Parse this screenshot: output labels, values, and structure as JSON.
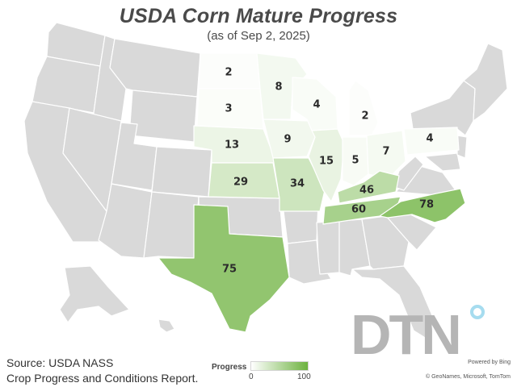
{
  "title": "USDA Corn Mature Progress",
  "subtitle": "(as of Sep 2, 2025)",
  "source_line1": "Source: USDA NASS",
  "source_line2": "Crop Progress and Conditions Report.",
  "legend": {
    "title": "Progress",
    "min": "0",
    "max": "100",
    "low_color": "#ffffff",
    "high_color": "#6db23f"
  },
  "colors": {
    "no_data": "#d9d9d9",
    "background": "#ffffff",
    "border": "#ffffff"
  },
  "logo_text": "DTN",
  "credit_powered": "Powered by Bing",
  "credit_names": "© GeoNames, Microsoft, TomTom",
  "states": [
    {
      "id": "ND",
      "value": 2
    },
    {
      "id": "SD",
      "value": 3
    },
    {
      "id": "MN",
      "value": 8
    },
    {
      "id": "WI",
      "value": 4
    },
    {
      "id": "MI",
      "value": 2
    },
    {
      "id": "NE",
      "value": 13
    },
    {
      "id": "IA",
      "value": 9
    },
    {
      "id": "IL",
      "value": 15
    },
    {
      "id": "IN",
      "value": 5
    },
    {
      "id": "OH",
      "value": 7
    },
    {
      "id": "PA",
      "value": 4
    },
    {
      "id": "KS",
      "value": 29
    },
    {
      "id": "MO",
      "value": 34
    },
    {
      "id": "KY",
      "value": 46
    },
    {
      "id": "TN",
      "value": 60
    },
    {
      "id": "NC",
      "value": 78
    },
    {
      "id": "TX",
      "value": 75
    }
  ]
}
